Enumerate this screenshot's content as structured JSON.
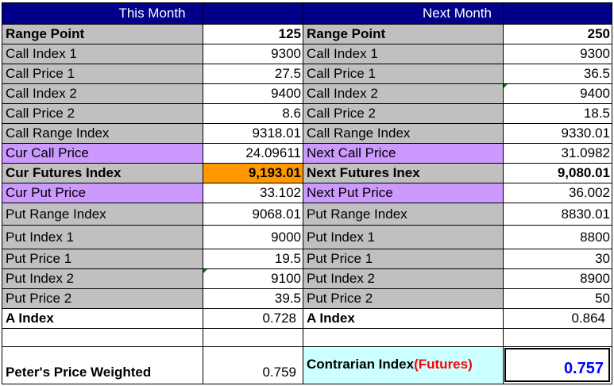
{
  "headers": {
    "this_month": "This Month",
    "next_month": "Next Month"
  },
  "left_rows": [
    {
      "label": "Range Point",
      "value": "125"
    },
    {
      "label": "Call Index 1",
      "value": "9300"
    },
    {
      "label": "Call Price 1",
      "value": "27.5"
    },
    {
      "label": "Call Index 2",
      "value": "9400"
    },
    {
      "label": "Call Price 2",
      "value": "8.6"
    },
    {
      "label": "Call Range Index",
      "value": "9318.01"
    },
    {
      "label": "Cur Call Price",
      "value": "24.09611"
    },
    {
      "label": "Cur Futures Index",
      "value": "9,193.01"
    },
    {
      "label": "Cur Put Price",
      "value": "33.102"
    },
    {
      "label": "Put Range Index",
      "value": "9068.01"
    },
    {
      "label": "Put Index 1",
      "value": "9000"
    },
    {
      "label": "Put Price 1",
      "value": "19.5"
    },
    {
      "label": "Put Index 2",
      "value": "9100"
    },
    {
      "label": "Put Price 2",
      "value": "39.5"
    },
    {
      "label": "A Index",
      "value": "0.728"
    },
    {
      "label": "",
      "value": ""
    },
    {
      "label": "Peter's Price Weighted",
      "value": "0.759"
    }
  ],
  "right_rows": [
    {
      "label": "Range Point",
      "value": "250"
    },
    {
      "label": "Call Index 1",
      "value": "9300"
    },
    {
      "label": "Call Price 1",
      "value": "36.5"
    },
    {
      "label": "Call Index 2",
      "value": "9400"
    },
    {
      "label": "Call Price 2",
      "value": "18.5"
    },
    {
      "label": "Call Range Index",
      "value": "9330.01"
    },
    {
      "label": "Next Call Price",
      "value": "31.0982"
    },
    {
      "label": "Next Futures Inex",
      "value": "9,080.01"
    },
    {
      "label": "Next Put Price",
      "value": "36.002"
    },
    {
      "label": "Put Range Index",
      "value": "8830.01"
    },
    {
      "label": "Put Index 1",
      "value": "8800"
    },
    {
      "label": "Put Price 1",
      "value": "30"
    },
    {
      "label": "Put Index 2",
      "value": "8900"
    },
    {
      "label": "Put Price 2",
      "value": "50"
    },
    {
      "label": "A Index",
      "value": "0.864"
    },
    {
      "label": "",
      "value": ""
    }
  ],
  "contrarian": {
    "label": "Contrarian Index",
    "suffix": "(Futures)",
    "value": "0.757"
  },
  "colors": {
    "header": "#00008b",
    "gray": "#c0c0c0",
    "lavender": "#cc99ff",
    "orange": "#ff9900",
    "cyan": "#ccffff",
    "red": "#ff0000",
    "blue": "#0000ff"
  }
}
